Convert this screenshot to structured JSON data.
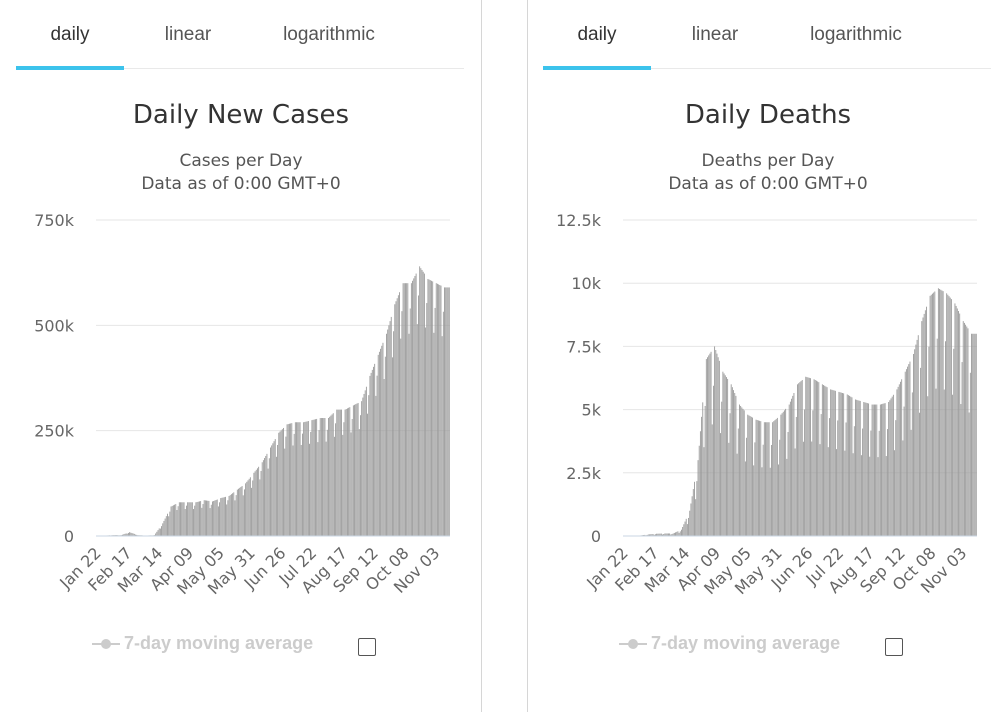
{
  "panels": [
    {
      "tabs": [
        "daily",
        "linear",
        "logarithmic"
      ],
      "active_tab": "daily",
      "title": "Daily New Cases",
      "subtitle_line1": "Cases per Day",
      "subtitle_line2": "Data as of 0:00 GMT+0",
      "legend_label": "7-day moving average",
      "legend_checked": false
    },
    {
      "tabs": [
        "daily",
        "linear",
        "logarithmic"
      ],
      "active_tab": "daily",
      "title": "Daily Deaths",
      "subtitle_line1": "Deaths per Day",
      "subtitle_line2": "Data as of 0:00 GMT+0",
      "legend_label": "7-day moving average",
      "legend_checked": false
    }
  ],
  "colors": {
    "bar": "#999999",
    "grid": "#e6e6e6",
    "accent": "#3cc3ec",
    "legend_disabled": "#cccccc"
  },
  "chart_data": [
    {
      "type": "bar",
      "title": "Daily New Cases",
      "ylabel": "Cases per Day",
      "ylim": [
        0,
        750000
      ],
      "y_ticks": [
        0,
        250000,
        500000,
        750000
      ],
      "y_tick_labels": [
        "0",
        "250k",
        "500k",
        "750k"
      ],
      "x_tick_labels": [
        "Jan 22",
        "Feb 17",
        "Mar 14",
        "Apr 09",
        "May 05",
        "May 31",
        "Jun 26",
        "Jul 22",
        "Aug 17",
        "Sep 12",
        "Oct 08",
        "Nov 03"
      ],
      "x_start": "Jan 22",
      "days": 299,
      "weekly_anchors": [
        0,
        1000,
        2000,
        2000,
        9000,
        2000,
        1000,
        2000,
        30000,
        70000,
        80000,
        80000,
        80000,
        85000,
        82000,
        90000,
        95000,
        110000,
        125000,
        150000,
        175000,
        210000,
        245000,
        265000,
        270000,
        270000,
        275000,
        280000,
        280000,
        300000,
        300000,
        310000,
        320000,
        380000,
        430000,
        480000,
        550000,
        600000,
        600000,
        640000,
        610000,
        600000,
        590000
      ],
      "weekend_dip": 0.8
    },
    {
      "type": "bar",
      "title": "Daily Deaths",
      "ylabel": "Deaths per Day",
      "ylim": [
        0,
        12500
      ],
      "y_ticks": [
        0,
        2500,
        5000,
        7500,
        10000,
        12500
      ],
      "y_tick_labels": [
        "0",
        "2.5k",
        "5k",
        "7.5k",
        "10k",
        "12.5k"
      ],
      "x_tick_labels": [
        "Jan 22",
        "Feb 17",
        "Mar 14",
        "Apr 09",
        "May 05",
        "May 31",
        "Jun 26",
        "Jul 22",
        "Aug 17",
        "Sep 12",
        "Oct 08",
        "Nov 03"
      ],
      "x_start": "Jan 22",
      "days": 299,
      "weekly_anchors": [
        0,
        10,
        20,
        60,
        90,
        100,
        100,
        250,
        1000,
        3000,
        7000,
        7500,
        6500,
        6000,
        5200,
        4800,
        4600,
        4500,
        4500,
        4800,
        5200,
        6000,
        6300,
        6200,
        6000,
        5800,
        5700,
        5600,
        5400,
        5300,
        5200,
        5200,
        5300,
        5800,
        6500,
        7200,
        8500,
        9500,
        9800,
        9600,
        9200,
        8500,
        8000
      ],
      "weekend_dip": 0.6
    }
  ]
}
